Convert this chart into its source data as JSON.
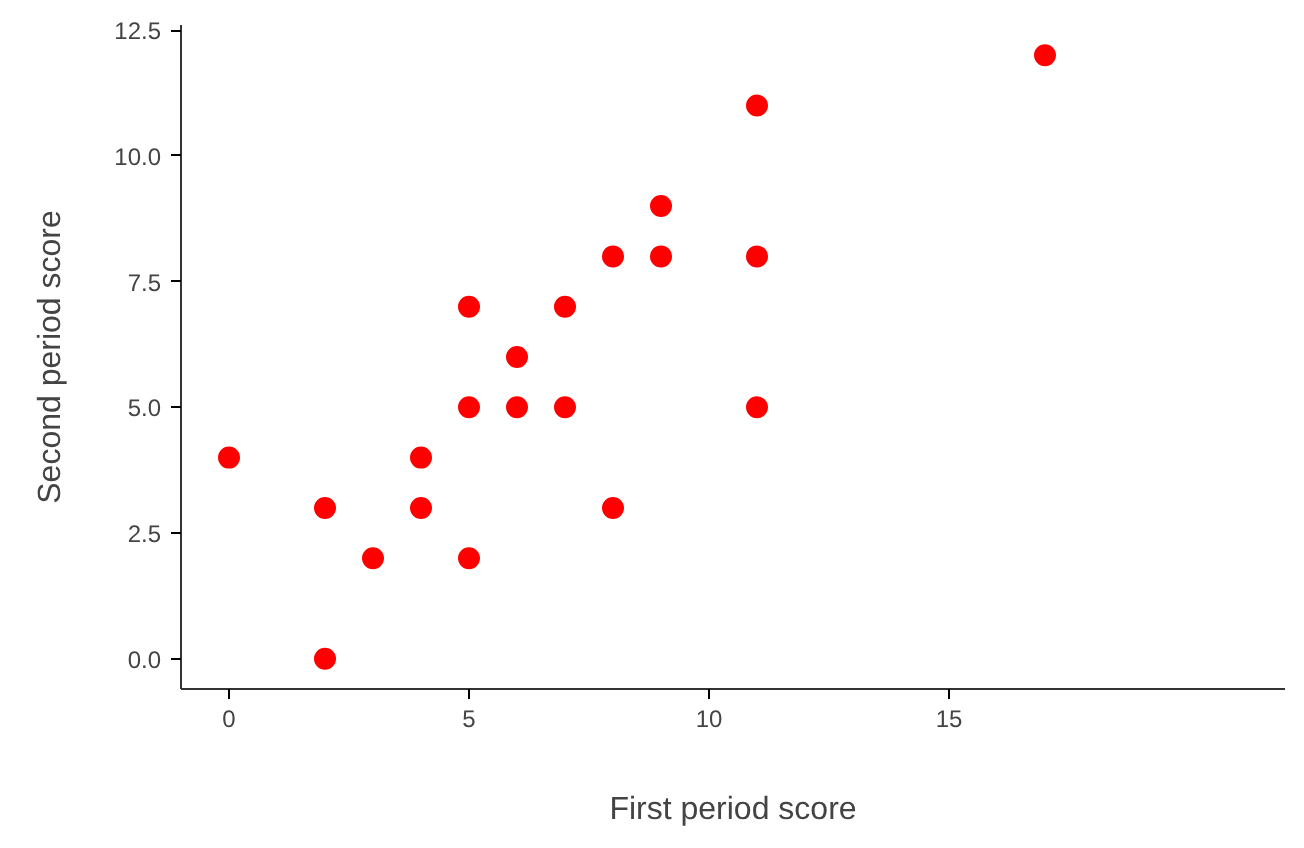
{
  "chart_data": {
    "type": "scatter",
    "xlabel": "First period score",
    "ylabel": "Second period score",
    "x": [
      0,
      2,
      2,
      3,
      4,
      4,
      5,
      5,
      5,
      6,
      6,
      7,
      7,
      8,
      8,
      9,
      9,
      11,
      11,
      11,
      17
    ],
    "series": [
      {
        "color": "#ff0000",
        "values": [
          4,
          3,
          0,
          2,
          4,
          3,
          7,
          5,
          2,
          6,
          5,
          7,
          5,
          8,
          3,
          9,
          8,
          11,
          8,
          5,
          12
        ]
      }
    ],
    "xlim": [
      -1,
      22
    ],
    "ylim": [
      -0.6,
      12.6
    ],
    "xticks": [
      0,
      5,
      10,
      15
    ],
    "yticks": [
      {
        "value": 0,
        "label": "0.0"
      },
      {
        "value": 2.5,
        "label": "2.5"
      },
      {
        "value": 5,
        "label": "5.0"
      },
      {
        "value": 7.5,
        "label": "7.5"
      },
      {
        "value": 10,
        "label": "10.0"
      },
      {
        "value": 12.5,
        "label": "12.5"
      }
    ],
    "grid": false,
    "marker": "circle"
  }
}
